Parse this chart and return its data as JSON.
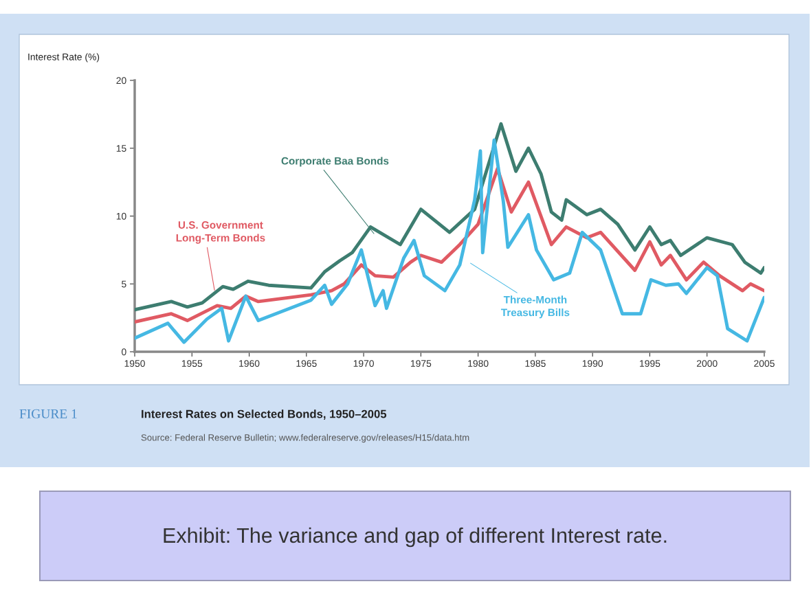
{
  "chart_data": {
    "type": "line",
    "title": "Interest Rates on Selected Bonds, 1950–2005",
    "ylabel": "Interest Rate (%)",
    "xlim": [
      1950,
      2005
    ],
    "xticks": [
      1950,
      1955,
      1960,
      1965,
      1970,
      1975,
      1980,
      1985,
      1990,
      1995,
      2000,
      2005
    ],
    "ylim": [
      0,
      20
    ],
    "yticks": [
      0,
      5,
      10,
      15,
      20
    ],
    "grid": false,
    "legend": false,
    "marker": "none",
    "line_style": "solid",
    "series": [
      {
        "name": "Corporate Baa Bonds",
        "color": "#3d7d70",
        "x": [
          1950,
          1953.2,
          1954.6,
          1955.9,
          1957.7,
          1958.6,
          1959.9,
          1961.7,
          1965.4,
          1966.6,
          1967.9,
          1969.0,
          1970.6,
          1973.2,
          1975.0,
          1977.5,
          1979.7,
          1982.0,
          1983.3,
          1984.4,
          1985.5,
          1986.4,
          1987.3,
          1987.7,
          1989.5,
          1990.7,
          1992.2,
          1993.7,
          1995.0,
          1996.0,
          1996.8,
          1997.7,
          2000.0,
          2002.2,
          2003.3,
          2004.7,
          2005.0
        ],
        "values": [
          3.1,
          3.7,
          3.3,
          3.6,
          4.8,
          4.6,
          5.2,
          4.9,
          4.7,
          5.9,
          6.7,
          7.3,
          9.2,
          7.9,
          10.5,
          8.8,
          10.5,
          16.8,
          13.3,
          15.0,
          13.1,
          10.3,
          9.7,
          11.2,
          10.1,
          10.5,
          9.4,
          7.5,
          9.2,
          7.9,
          8.2,
          7.1,
          8.4,
          7.9,
          6.6,
          5.8,
          6.2
        ]
      },
      {
        "name": "U.S. Government\nLong-Term Bonds",
        "color": "#e05a63",
        "x": [
          1950,
          1953.2,
          1954.6,
          1957.2,
          1958.4,
          1959.7,
          1960.8,
          1965.4,
          1967.2,
          1968.3,
          1969.8,
          1971.0,
          1972.6,
          1974.1,
          1975.0,
          1976.8,
          1978.4,
          1980.0,
          1981.7,
          1982.9,
          1984.4,
          1986.4,
          1987.7,
          1989.5,
          1990.7,
          1993.7,
          1995.0,
          1996.0,
          1996.8,
          1998.2,
          1999.7,
          2001.1,
          2003.1,
          2003.8,
          2005.0
        ],
        "values": [
          2.2,
          2.8,
          2.3,
          3.4,
          3.2,
          4.1,
          3.7,
          4.2,
          4.5,
          5.0,
          6.4,
          5.6,
          5.5,
          6.6,
          7.1,
          6.6,
          7.9,
          9.4,
          13.5,
          10.3,
          12.5,
          7.9,
          9.2,
          8.4,
          8.8,
          6.0,
          8.1,
          6.4,
          7.1,
          5.3,
          6.6,
          5.6,
          4.5,
          5.0,
          4.5
        ]
      },
      {
        "name": "Three-Month\nTreasury Bills",
        "color": "#45b8e3",
        "x": [
          1950,
          1952.9,
          1954.3,
          1956.3,
          1957.6,
          1958.2,
          1959.7,
          1960.8,
          1965.4,
          1966.6,
          1967.2,
          1968.6,
          1969.8,
          1971.0,
          1971.7,
          1972.0,
          1973.5,
          1974.4,
          1975.3,
          1977.1,
          1978.4,
          1979.7,
          1980.2,
          1980.4,
          1981.4,
          1982.2,
          1982.6,
          1984.4,
          1985.1,
          1986.6,
          1988.0,
          1989.1,
          1990.7,
          1992.6,
          1994.2,
          1995.1,
          1996.4,
          1997.5,
          1998.2,
          2000.0,
          2000.9,
          2001.8,
          2003.5,
          2005.0
        ],
        "values": [
          1.0,
          2.1,
          0.7,
          2.4,
          3.2,
          0.8,
          4.1,
          2.3,
          3.8,
          4.9,
          3.5,
          5.0,
          7.5,
          3.4,
          4.5,
          3.2,
          6.9,
          8.2,
          5.6,
          4.5,
          6.4,
          11.2,
          14.8,
          7.3,
          15.6,
          11.1,
          7.7,
          10.1,
          7.5,
          5.3,
          5.8,
          8.8,
          7.5,
          2.8,
          2.8,
          5.3,
          4.9,
          5.0,
          4.3,
          6.2,
          5.6,
          1.7,
          0.8,
          4.0
        ]
      }
    ],
    "annotations": [
      "FIGURE 1",
      "Source: Federal Reserve Bulletin; www.federalreserve.gov/releases/H15/data.htm",
      "Exhibit: The variance and gap of different Interest rate."
    ]
  }
}
